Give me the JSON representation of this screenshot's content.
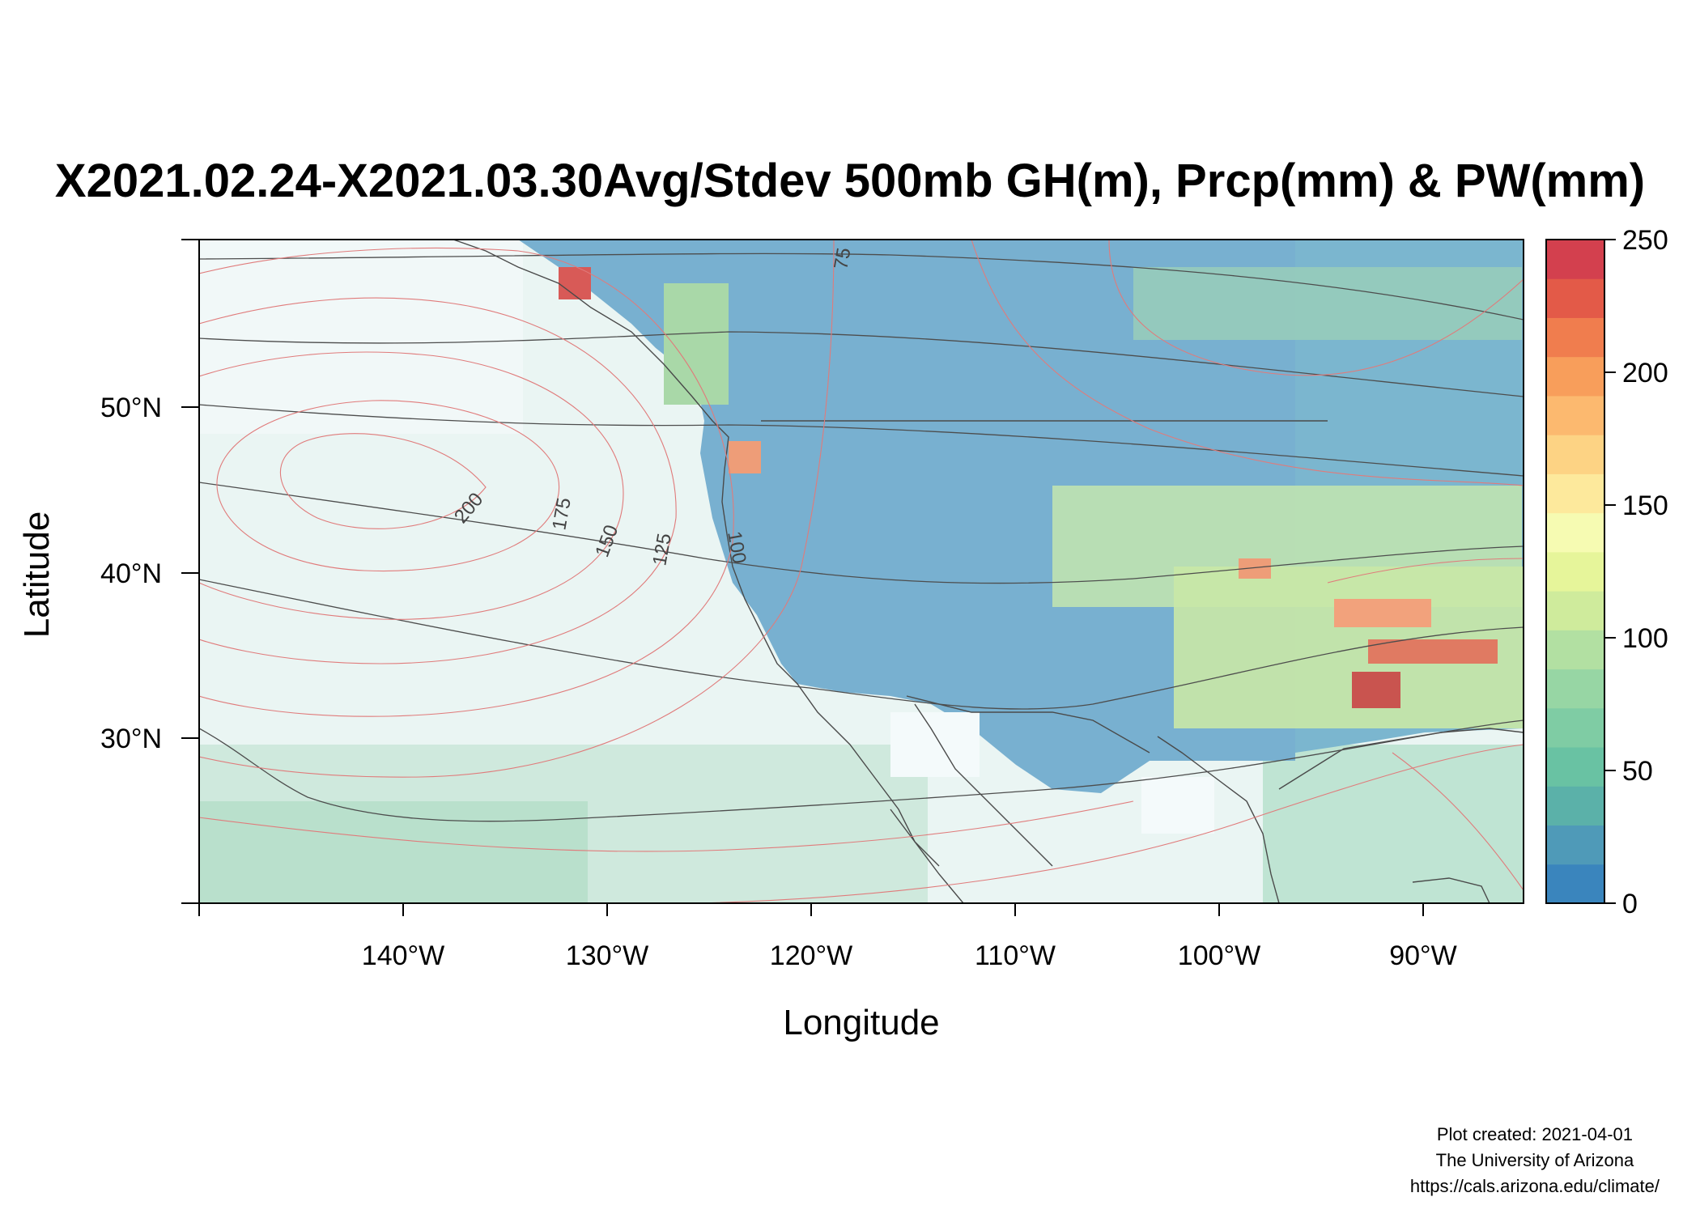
{
  "title": "X2021.02.24-X2021.03.30Avg/Stdev 500mb GH(m), Prcp(mm) & PW(mm)",
  "xlabel": "Longitude",
  "ylabel": "Latitude",
  "x_ticks": [
    "140°W",
    "130°W",
    "120°W",
    "110°W",
    "100°W",
    "90°W"
  ],
  "y_ticks": [
    "30°N",
    "40°N",
    "50°N"
  ],
  "colorbar_ticks": [
    "0",
    "50",
    "100",
    "150",
    "200",
    "250"
  ],
  "contour_labels": [
    "75",
    "200",
    "175",
    "150",
    "125",
    "100"
  ],
  "credit": {
    "line1": "Plot created: 2021-04-01",
    "line2": "The University of Arizona",
    "line3": "https://cals.arizona.edu/climate/"
  },
  "map_data": {
    "lon_range": [
      -150,
      -85
    ],
    "lat_range": [
      20,
      60
    ],
    "colorbar_range": [
      0,
      250
    ],
    "colorbar_palette": [
      "#3a85bd",
      "#4f9ab8",
      "#5bb1a9",
      "#69c2a3",
      "#7fcca4",
      "#97d6a4",
      "#b2e0a2",
      "#cfeb9c",
      "#e6f59a",
      "#f6fbb2",
      "#fde99c",
      "#fdd384",
      "#fcb96f",
      "#f89e5b",
      "#f07d4e",
      "#e35a48",
      "#d3404e"
    ],
    "contour_levels_stdev": [
      "75",
      "100",
      "125",
      "150",
      "175",
      "200"
    ]
  }
}
